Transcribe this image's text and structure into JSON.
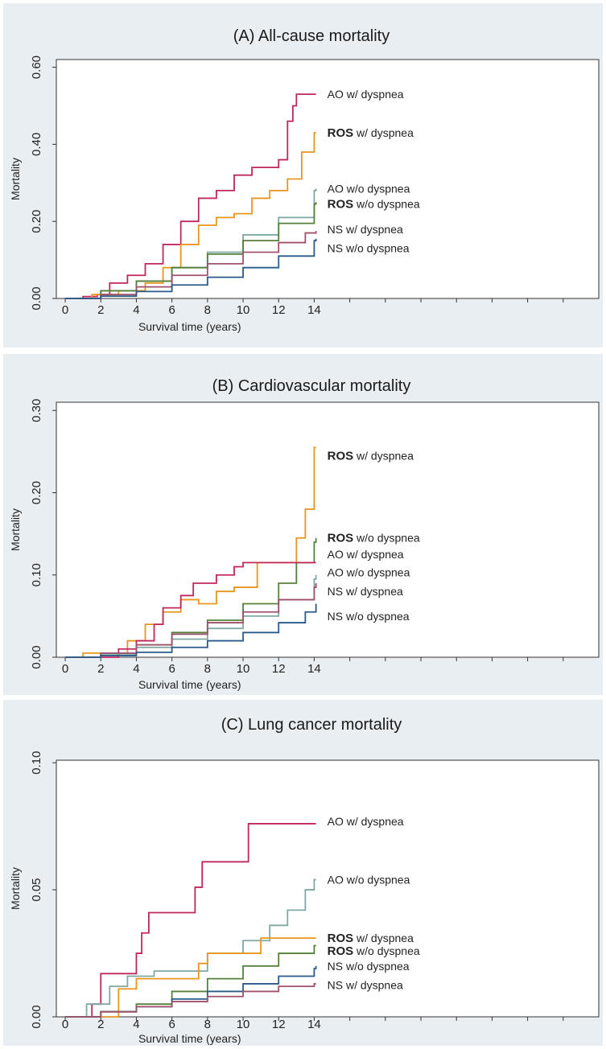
{
  "chart_data": [
    {
      "type": "line",
      "step": true,
      "title": "(A) All-cause mortality",
      "xlabel": "Survival time (years)",
      "ylabel": "Mortality",
      "xlim": [
        -0.5,
        30
      ],
      "ylim": [
        0,
        0.62
      ],
      "xticks": [
        "0",
        "2",
        "4",
        "6",
        "8",
        "10",
        "12",
        "14"
      ],
      "xtick_values": [
        0,
        2,
        4,
        6,
        8,
        10,
        12,
        14
      ],
      "yticks": [
        "0.00",
        "0.20",
        "0.40",
        "0.60"
      ],
      "ytick_values": [
        0,
        0.2,
        0.4,
        0.6
      ],
      "grid": false,
      "series": [
        {
          "name": "AO w/ dyspnea",
          "prefix": "AO",
          "suffix": " w/ dyspnea",
          "color": "#c0285a",
          "label_y": 0.53,
          "x": [
            0,
            1,
            1.8,
            2.5,
            3.5,
            4.5,
            5.5,
            6.5,
            7.5,
            8.5,
            9.5,
            10.5,
            12.0,
            12.5,
            12.8,
            13.0,
            14.1
          ],
          "y": [
            0,
            0.005,
            0.01,
            0.04,
            0.06,
            0.09,
            0.14,
            0.2,
            0.26,
            0.28,
            0.32,
            0.34,
            0.36,
            0.46,
            0.5,
            0.53,
            0.53
          ]
        },
        {
          "name": "ROS w/ dyspnea",
          "prefix": "ROS",
          "suffix": " w/ dyspnea",
          "color": "#e8961e",
          "prefix_bold": true,
          "label_y": 0.43,
          "x": [
            0,
            1.5,
            3.0,
            4.5,
            5.5,
            6.5,
            7.5,
            8.5,
            9.5,
            10.5,
            11.5,
            12.5,
            13.3,
            14.0,
            14.1
          ],
          "y": [
            0,
            0.01,
            0.02,
            0.04,
            0.08,
            0.14,
            0.19,
            0.21,
            0.22,
            0.26,
            0.28,
            0.31,
            0.38,
            0.43,
            0.43
          ]
        },
        {
          "name": "AO w/o dyspnea",
          "prefix": "AO",
          "suffix": " w/o dyspnea",
          "color": "#7fa8a4",
          "label_y": 0.285,
          "x": [
            0,
            2,
            4,
            6,
            8,
            10,
            12,
            14,
            14.1
          ],
          "y": [
            0,
            0.02,
            0.045,
            0.08,
            0.12,
            0.165,
            0.21,
            0.28,
            0.285
          ]
        },
        {
          "name": "ROS w/o dyspnea",
          "prefix": "ROS",
          "suffix": " w/o dyspnea",
          "color": "#55803a",
          "prefix_bold": true,
          "label_y": 0.245,
          "x": [
            0,
            2,
            4,
            6,
            8,
            10,
            12,
            14,
            14.1
          ],
          "y": [
            0,
            0.02,
            0.045,
            0.08,
            0.115,
            0.15,
            0.195,
            0.245,
            0.25
          ]
        },
        {
          "name": "NS w/ dyspnea",
          "prefix": "NS",
          "suffix": " w/ dyspnea",
          "color": "#a0506a",
          "label_y": 0.18,
          "x": [
            0,
            2,
            4,
            6,
            8,
            10,
            12,
            13.5,
            14.1
          ],
          "y": [
            0,
            0.01,
            0.03,
            0.06,
            0.09,
            0.12,
            0.145,
            0.17,
            0.175
          ]
        },
        {
          "name": "NS w/o dyspnea",
          "prefix": "NS",
          "suffix": " w/o dyspnea",
          "color": "#2a5a8a",
          "label_y": 0.13,
          "x": [
            0,
            2,
            4,
            6,
            8,
            10,
            12,
            14,
            14.1
          ],
          "y": [
            0,
            0.006,
            0.018,
            0.035,
            0.055,
            0.08,
            0.11,
            0.15,
            0.155
          ]
        }
      ]
    },
    {
      "type": "line",
      "step": true,
      "title": "(B) Cardiovascular mortality",
      "xlabel": "Survival time (years)",
      "ylabel": "Mortality",
      "xlim": [
        -0.5,
        30
      ],
      "ylim": [
        0,
        0.31
      ],
      "xticks": [
        "0",
        "2",
        "4",
        "6",
        "8",
        "10",
        "12",
        "14"
      ],
      "xtick_values": [
        0,
        2,
        4,
        6,
        8,
        10,
        12,
        14
      ],
      "yticks": [
        "0.00",
        "0.10",
        "0.20",
        "0.30"
      ],
      "ytick_values": [
        0,
        0.1,
        0.2,
        0.3
      ],
      "grid": false,
      "series": [
        {
          "name": "ROS w/ dyspnea",
          "prefix": "ROS",
          "suffix": " w/ dyspnea",
          "color": "#e8961e",
          "prefix_bold": true,
          "label_y": 0.245,
          "x": [
            0,
            1.0,
            3.5,
            4.5,
            5.5,
            6.5,
            7.5,
            8.5,
            9.5,
            10.8,
            11.5,
            12.5,
            13.0,
            13.5,
            14.0,
            14.1
          ],
          "y": [
            0,
            0.005,
            0.02,
            0.04,
            0.055,
            0.07,
            0.065,
            0.08,
            0.085,
            0.115,
            0.115,
            0.115,
            0.145,
            0.18,
            0.255,
            0.255
          ]
        },
        {
          "name": "ROS w/o dyspnea",
          "prefix": "ROS",
          "suffix": " w/o dyspnea",
          "color": "#55803a",
          "prefix_bold": true,
          "label_y": 0.145,
          "x": [
            0,
            2,
            4,
            6,
            8,
            10,
            12,
            13,
            14,
            14.1
          ],
          "y": [
            0,
            0.005,
            0.015,
            0.03,
            0.045,
            0.065,
            0.09,
            0.115,
            0.14,
            0.145
          ]
        },
        {
          "name": "AO w/ dyspnea",
          "prefix": "AO",
          "suffix": " w/ dyspnea",
          "color": "#c0285a",
          "label_y": 0.125,
          "x": [
            0,
            3.0,
            4.0,
            5.0,
            5.5,
            6.5,
            7.2,
            8.5,
            9.5,
            10.0,
            14.1
          ],
          "y": [
            0,
            0.01,
            0.02,
            0.04,
            0.06,
            0.075,
            0.09,
            0.1,
            0.11,
            0.115,
            0.115
          ]
        },
        {
          "name": "AO w/o dyspnea",
          "prefix": "AO",
          "suffix": " w/o dyspnea",
          "color": "#7fa8a4",
          "label_y": 0.103,
          "x": [
            0,
            2,
            4,
            6,
            8,
            10,
            12,
            14,
            14.1
          ],
          "y": [
            0,
            0.004,
            0.012,
            0.022,
            0.035,
            0.05,
            0.07,
            0.095,
            0.1
          ]
        },
        {
          "name": "NS w/ dyspnea",
          "prefix": "NS",
          "suffix": " w/ dyspnea",
          "color": "#a0506a",
          "label_y": 0.08,
          "x": [
            0,
            2,
            4,
            6,
            8,
            10,
            12,
            14,
            14.1
          ],
          "y": [
            0,
            0.005,
            0.015,
            0.028,
            0.042,
            0.055,
            0.07,
            0.085,
            0.09
          ]
        },
        {
          "name": "NS w/o dyspnea",
          "prefix": "NS",
          "suffix": " w/o dyspnea",
          "color": "#2a5a8a",
          "label_y": 0.05,
          "x": [
            0,
            2,
            4,
            6,
            8,
            10,
            12,
            13.5,
            14.1
          ],
          "y": [
            0,
            0.002,
            0.006,
            0.012,
            0.02,
            0.03,
            0.042,
            0.055,
            0.065
          ]
        }
      ]
    },
    {
      "type": "line",
      "step": true,
      "title": "(C) Lung cancer mortality",
      "xlabel": "Survival time (years)",
      "ylabel": "Mortality",
      "xlim": [
        -0.5,
        30
      ],
      "ylim": [
        0,
        0.101
      ],
      "xticks": [
        "0",
        "2",
        "4",
        "6",
        "8",
        "10",
        "12",
        "14"
      ],
      "xtick_values": [
        0,
        2,
        4,
        6,
        8,
        10,
        12,
        14
      ],
      "yticks": [
        "0.00",
        "0.05",
        "0.10"
      ],
      "ytick_values": [
        0,
        0.05,
        0.1
      ],
      "grid": false,
      "series": [
        {
          "name": "AO w/ dyspnea",
          "prefix": "AO",
          "suffix": " w/ dyspnea",
          "color": "#c0285a",
          "label_y": 0.077,
          "x": [
            0,
            1.5,
            2.0,
            3.5,
            4.0,
            4.3,
            4.7,
            7.3,
            7.7,
            8.2,
            10.3,
            10.7,
            14.1
          ],
          "y": [
            0,
            0.005,
            0.017,
            0.017,
            0.025,
            0.033,
            0.041,
            0.051,
            0.061,
            0.061,
            0.076,
            0.076,
            0.076
          ]
        },
        {
          "name": "AO w/o dyspnea",
          "prefix": "AO",
          "suffix": " w/o dyspnea",
          "color": "#7fa8a4",
          "label_y": 0.054,
          "x": [
            0,
            1.2,
            2.5,
            3.5,
            5.0,
            8.0,
            10.0,
            11.5,
            12.5,
            13.5,
            14.0,
            14.1
          ],
          "y": [
            0,
            0.005,
            0.012,
            0.016,
            0.018,
            0.025,
            0.03,
            0.036,
            0.042,
            0.05,
            0.054,
            0.054
          ]
        },
        {
          "name": "ROS w/ dyspnea",
          "prefix": "ROS",
          "suffix": " w/ dyspnea",
          "color": "#e8961e",
          "prefix_bold": true,
          "label_y": 0.031,
          "x": [
            0,
            2.5,
            3.0,
            4.0,
            6.0,
            7.5,
            8.0,
            11.0,
            14.1
          ],
          "y": [
            0,
            0.0,
            0.011,
            0.015,
            0.015,
            0.021,
            0.025,
            0.031,
            0.031
          ]
        },
        {
          "name": "ROS w/o dyspnea",
          "prefix": "ROS",
          "suffix": " w/o dyspnea",
          "color": "#55803a",
          "prefix_bold": true,
          "label_y": 0.026,
          "x": [
            0,
            2,
            4,
            6,
            8,
            10,
            12,
            14,
            14.1
          ],
          "y": [
            0,
            0.002,
            0.005,
            0.01,
            0.015,
            0.02,
            0.025,
            0.028,
            0.028
          ]
        },
        {
          "name": "NS w/o dyspnea",
          "prefix": "NS",
          "suffix": " w/o dyspnea",
          "color": "#2a5a8a",
          "label_y": 0.02,
          "x": [
            0,
            2,
            4,
            6,
            8,
            10,
            12,
            14,
            14.1
          ],
          "y": [
            0,
            0.002,
            0.004,
            0.007,
            0.01,
            0.013,
            0.016,
            0.019,
            0.02
          ]
        },
        {
          "name": "NS w/ dyspnea",
          "prefix": "NS",
          "suffix": " w/ dyspnea",
          "color": "#a0506a",
          "label_y": 0.0125,
          "x": [
            0,
            2,
            4,
            6,
            8,
            10,
            12,
            14,
            14.1
          ],
          "y": [
            0,
            0.002,
            0.004,
            0.006,
            0.008,
            0.01,
            0.012,
            0.013,
            0.013
          ]
        }
      ]
    }
  ]
}
